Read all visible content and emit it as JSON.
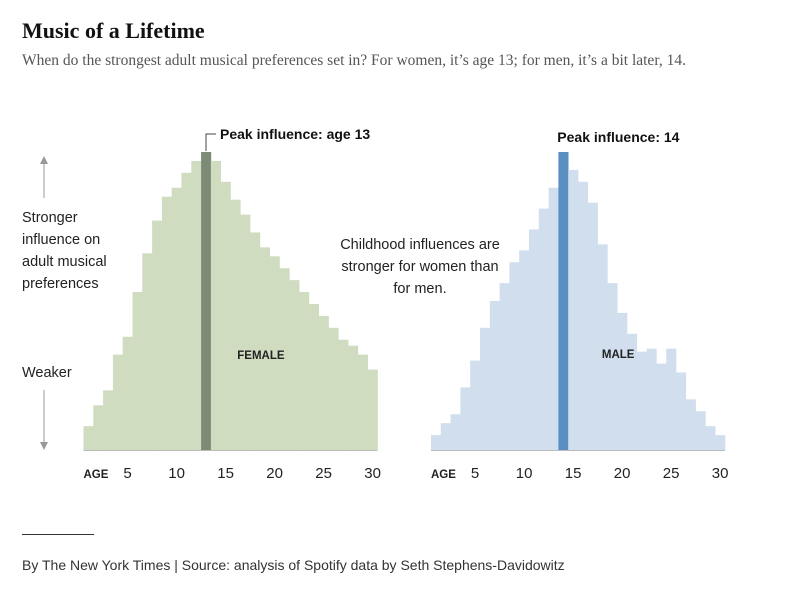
{
  "title": "Music of a Lifetime",
  "subtitle": "When do the strongest adult musical preferences set in? For women, it’s age 13; for men, it’s a bit later, 14.",
  "y_axis": {
    "strong_label": "Stronger influence on adult musical preferences",
    "weak_label": "Weaker"
  },
  "note": "Childhood influences are stronger for women than for men.",
  "source": "By The New York Times | Source: analysis of Spotify data by Seth Stephens-Davidowitz",
  "colors": {
    "female_bar": "#cfdcc0",
    "female_peak": "#7d8a75",
    "male_bar": "#d1deee",
    "male_peak": "#5a8fc1",
    "arrow": "#999999"
  },
  "chart_data": [
    {
      "type": "bar",
      "series_label": "FEMALE",
      "x_label": "AGE",
      "x_ticks": [
        5,
        10,
        15,
        20,
        25,
        30
      ],
      "x": [
        1,
        2,
        3,
        4,
        5,
        6,
        7,
        8,
        9,
        10,
        11,
        12,
        13,
        14,
        15,
        16,
        17,
        18,
        19,
        20,
        21,
        22,
        23,
        24,
        25,
        26,
        27,
        28,
        29,
        30
      ],
      "values": [
        8,
        15,
        20,
        32,
        38,
        53,
        66,
        77,
        85,
        88,
        93,
        97,
        100,
        97,
        90,
        84,
        79,
        73,
        68,
        65,
        61,
        57,
        53,
        49,
        45,
        41,
        37,
        35,
        32,
        27
      ],
      "ylim": [
        0,
        100
      ],
      "peak_age": 13,
      "peak_label": "Peak influence: age 13",
      "y_axis_units": "relative (no values printed)"
    },
    {
      "type": "bar",
      "series_label": "MALE",
      "x_label": "AGE",
      "x_ticks": [
        5,
        10,
        15,
        20,
        25,
        30
      ],
      "x": [
        1,
        2,
        3,
        4,
        5,
        6,
        7,
        8,
        9,
        10,
        11,
        12,
        13,
        14,
        15,
        16,
        17,
        18,
        19,
        20,
        21,
        22,
        23,
        24,
        25,
        26,
        27,
        28,
        29,
        30
      ],
      "values": [
        5,
        9,
        12,
        21,
        30,
        41,
        50,
        56,
        63,
        67,
        74,
        81,
        88,
        100,
        94,
        90,
        83,
        69,
        56,
        46,
        39,
        33,
        34,
        29,
        34,
        26,
        17,
        13,
        8,
        5
      ],
      "ylim": [
        0,
        100
      ],
      "peak_age": 14,
      "peak_label": "Peak influence: 14",
      "y_axis_units": "relative (no values printed)"
    }
  ]
}
